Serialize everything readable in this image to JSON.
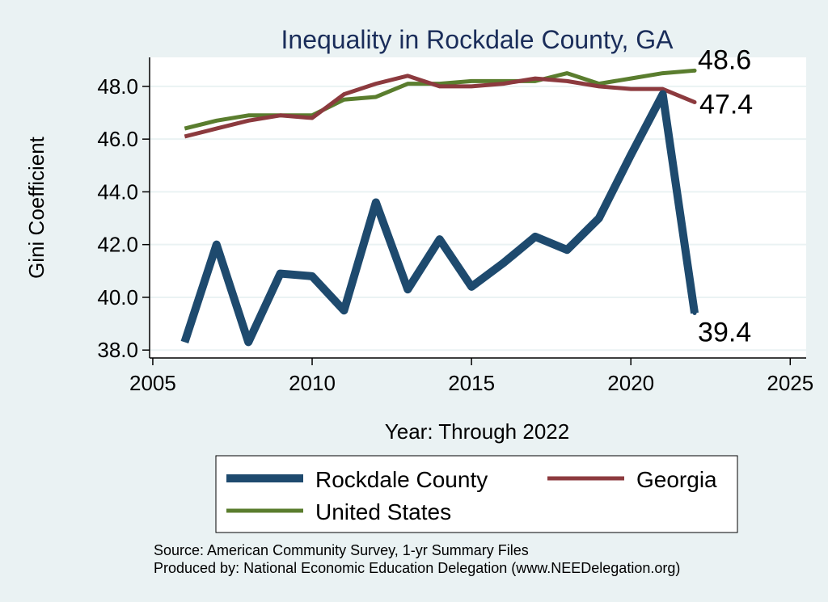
{
  "chart_data": {
    "type": "line",
    "title": "Inequality in Rockdale County, GA",
    "xlabel": "Year: Through 2022",
    "ylabel": "Gini Coefficient",
    "xlim": [
      2004.9,
      2025.5
    ],
    "ylim": [
      37.7,
      49.1
    ],
    "xticks": [
      2005,
      2010,
      2015,
      2020,
      2025
    ],
    "yticks": [
      38.0,
      40.0,
      42.0,
      44.0,
      46.0,
      48.0
    ],
    "ytick_labels": [
      "38.0",
      "40.0",
      "42.0",
      "44.0",
      "46.0",
      "48.0"
    ],
    "grid": "horizontal",
    "legend_position": "bottom",
    "x": [
      2006,
      2007,
      2008,
      2009,
      2010,
      2011,
      2012,
      2013,
      2014,
      2015,
      2016,
      2017,
      2018,
      2019,
      2020,
      2021,
      2022
    ],
    "series": [
      {
        "name": "Rockdale County",
        "color": "#1e4a6e",
        "values": [
          38.3,
          42.0,
          38.3,
          40.9,
          40.8,
          39.5,
          43.6,
          40.3,
          42.2,
          40.4,
          41.3,
          42.3,
          41.8,
          43.0,
          45.4,
          47.7,
          39.4
        ],
        "end_label": "39.4"
      },
      {
        "name": "Georgia",
        "color": "#8c3a3e",
        "values": [
          46.1,
          46.4,
          46.7,
          46.9,
          46.8,
          47.7,
          48.1,
          48.4,
          48.0,
          48.0,
          48.1,
          48.3,
          48.2,
          48.0,
          47.9,
          47.9,
          47.4
        ],
        "end_label": "47.4"
      },
      {
        "name": "United States",
        "color": "#5a7d2e",
        "values": [
          46.4,
          46.7,
          46.9,
          46.9,
          46.9,
          47.5,
          47.6,
          48.1,
          48.1,
          48.2,
          48.2,
          48.2,
          48.5,
          48.1,
          48.3,
          48.5,
          48.6
        ],
        "end_label": "48.6"
      }
    ]
  },
  "footnotes": {
    "source": "Source: American Community Survey, 1-yr Summary Files",
    "produced_by": "Produced by: National Economic Education Delegation (www.NEEDelegation.org)"
  }
}
